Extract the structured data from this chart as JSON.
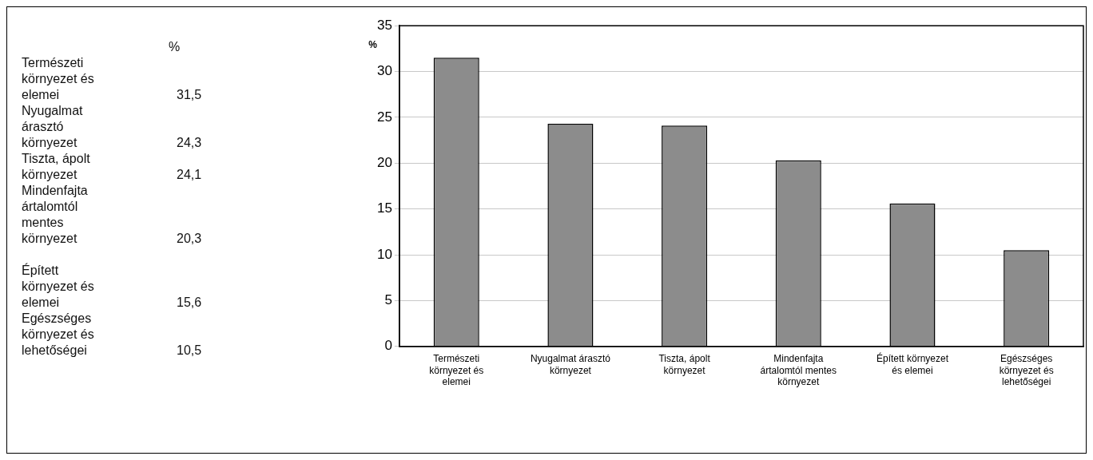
{
  "chart_data": [
    {
      "type": "other",
      "annotations": [
        "%",
        "Természeti környezet és elemei",
        "31,5",
        "Nyugalmat árasztó környezet",
        "24,3",
        "Tiszta, ápolt környezet",
        "24,1",
        "Mindenfajta ártalomtól mentes környezet",
        "20,3",
        "Épített környezet és elemei",
        "15,6",
        "Egészséges környezet és lehetőségei",
        "10,5"
      ]
    },
    {
      "type": "bar",
      "ylabel": "%",
      "categories": [
        "Természeti környezet és elemei",
        "Nyugalmat árasztó környezet",
        "Tiszta, ápolt környezet",
        "Mindenfajta ártalomtól mentes környezet",
        "Épített környezet és elemei",
        "Egészséges környezet és lehetőségei"
      ],
      "values": [
        31.5,
        24.3,
        24.1,
        20.3,
        15.6,
        10.5
      ],
      "color": "#8c8c8c",
      "ylim": [
        0,
        35
      ],
      "yticks": [
        0,
        5,
        10,
        15,
        20,
        25,
        30,
        35
      ],
      "grid": "y",
      "legend": false
    }
  ]
}
